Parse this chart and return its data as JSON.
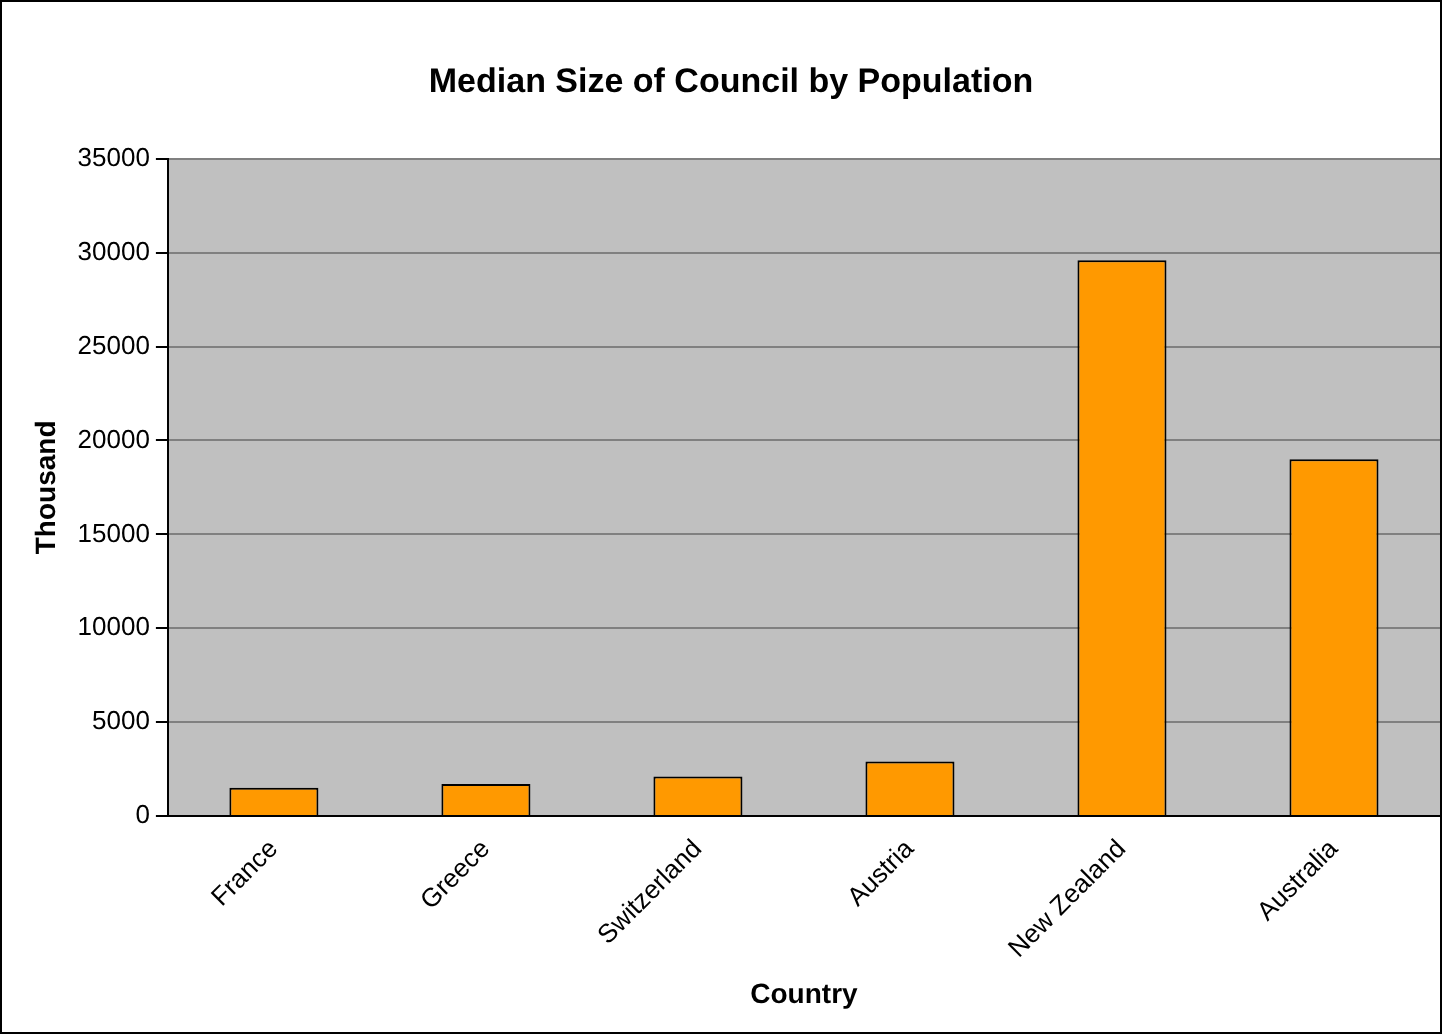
{
  "chart_data": {
    "type": "bar",
    "title": "Median Size of Council by Population",
    "xlabel": "Country",
    "ylabel": "Thousand",
    "categories": [
      "France",
      "Greece",
      "Switzerland",
      "Austria",
      "New Zealand",
      "Australia"
    ],
    "values": [
      1500,
      1700,
      2100,
      2900,
      29600,
      19000
    ],
    "color": "#ff9900",
    "ylim": [
      0,
      35000
    ],
    "yticks": [
      0,
      5000,
      10000,
      15000,
      20000,
      25000,
      30000,
      35000
    ],
    "grid": "y",
    "legend": false
  }
}
